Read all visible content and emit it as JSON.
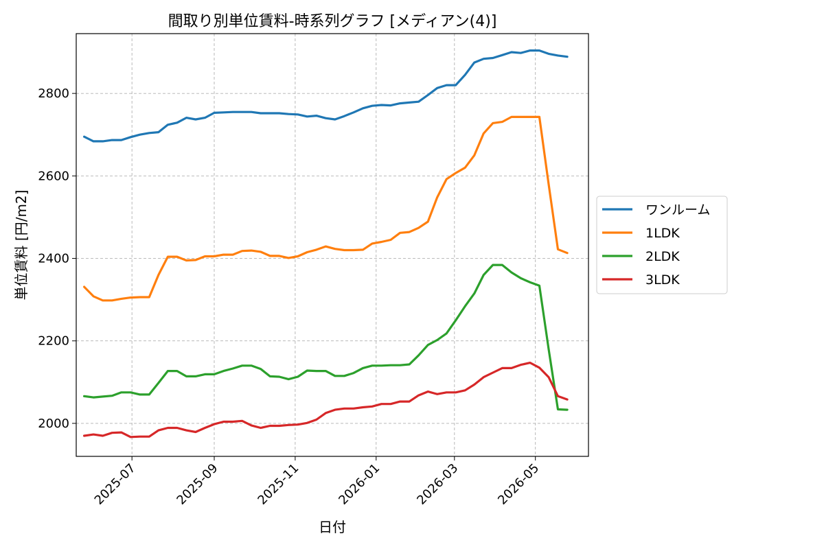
{
  "chart_data": {
    "type": "line",
    "title": "間取り別単位賃料-時系列グラフ [メディアン(4)]",
    "xlabel": "日付",
    "ylabel": "単位賃料 [円/m2]",
    "ylim": [
      1920,
      2945
    ],
    "xlim": [
      "2025-05-20",
      "2026-06-10"
    ],
    "yticks": [
      2000,
      2200,
      2400,
      2600,
      2800
    ],
    "xticks": [
      "2025-07-01",
      "2025-09-01",
      "2025-11-01",
      "2026-01-01",
      "2026-03-01",
      "2026-05-01"
    ],
    "xtick_labels": [
      "2025-07",
      "2025-09",
      "2025-11",
      "2026-01",
      "2026-03",
      "2026-05"
    ],
    "grid": true,
    "legend_position": "right-outside",
    "x": [
      "2025-05-26",
      "2025-06-02",
      "2025-06-09",
      "2025-06-16",
      "2025-06-23",
      "2025-06-30",
      "2025-07-07",
      "2025-07-14",
      "2025-07-21",
      "2025-07-28",
      "2025-08-04",
      "2025-08-11",
      "2025-08-18",
      "2025-08-25",
      "2025-09-01",
      "2025-09-08",
      "2025-09-15",
      "2025-09-22",
      "2025-09-29",
      "2025-10-06",
      "2025-10-13",
      "2025-10-20",
      "2025-10-27",
      "2025-11-03",
      "2025-11-10",
      "2025-11-17",
      "2025-11-24",
      "2025-12-01",
      "2025-12-08",
      "2025-12-15",
      "2025-12-22",
      "2025-12-29",
      "2026-01-05",
      "2026-01-12",
      "2026-01-19",
      "2026-01-26",
      "2026-02-02",
      "2026-02-09",
      "2026-02-16",
      "2026-02-23",
      "2026-03-02",
      "2026-03-09",
      "2026-03-16",
      "2026-03-23",
      "2026-03-30",
      "2026-04-06",
      "2026-04-13",
      "2026-04-20",
      "2026-04-27",
      "2026-05-04",
      "2026-05-11",
      "2026-05-18",
      "2026-05-25"
    ],
    "series": [
      {
        "name": "ワンルーム",
        "color": "#1f77b4",
        "values": [
          2695,
          2684,
          2684,
          2687,
          2687,
          2694,
          2700,
          2704,
          2706,
          2724,
          2729,
          2741,
          2737,
          2741,
          2753,
          2754,
          2755,
          2755,
          2755,
          2752,
          2752,
          2752,
          2750,
          2749,
          2744,
          2746,
          2740,
          2737,
          2745,
          2754,
          2764,
          2770,
          2772,
          2771,
          2776,
          2778,
          2780,
          2796,
          2813,
          2820,
          2820,
          2845,
          2875,
          2884,
          2886,
          2893,
          2900,
          2898,
          2904,
          2904,
          2896,
          2892,
          2889
        ]
      },
      {
        "name": "1LDK",
        "color": "#ff7f0e",
        "values": [
          2331,
          2308,
          2298,
          2298,
          2302,
          2305,
          2306,
          2306,
          2360,
          2404,
          2404,
          2395,
          2396,
          2405,
          2405,
          2409,
          2409,
          2418,
          2419,
          2416,
          2406,
          2406,
          2401,
          2405,
          2415,
          2421,
          2429,
          2423,
          2420,
          2420,
          2421,
          2436,
          2440,
          2445,
          2462,
          2464,
          2474,
          2489,
          2548,
          2592,
          2607,
          2620,
          2650,
          2703,
          2728,
          2731,
          2743,
          2743,
          2743,
          2743,
          2580,
          2422,
          2413
        ]
      },
      {
        "name": "2LDK",
        "color": "#2ca02c",
        "values": [
          2066,
          2063,
          2065,
          2067,
          2075,
          2075,
          2070,
          2070,
          2098,
          2127,
          2127,
          2114,
          2114,
          2119,
          2119,
          2127,
          2133,
          2140,
          2140,
          2132,
          2114,
          2113,
          2107,
          2113,
          2128,
          2127,
          2127,
          2115,
          2115,
          2122,
          2134,
          2140,
          2140,
          2141,
          2141,
          2143,
          2165,
          2190,
          2202,
          2218,
          2250,
          2284,
          2315,
          2360,
          2384,
          2384,
          2366,
          2352,
          2342,
          2334,
          2180,
          2034,
          2033
        ]
      },
      {
        "name": "3LDK",
        "color": "#d62728",
        "values": [
          1970,
          1973,
          1970,
          1977,
          1978,
          1967,
          1968,
          1968,
          1983,
          1989,
          1989,
          1983,
          1979,
          1989,
          1998,
          2004,
          2004,
          2006,
          1995,
          1989,
          1994,
          1994,
          1996,
          1997,
          2001,
          2009,
          2025,
          2033,
          2036,
          2036,
          2039,
          2041,
          2047,
          2047,
          2053,
          2053,
          2068,
          2077,
          2071,
          2075,
          2075,
          2080,
          2094,
          2112,
          2123,
          2134,
          2134,
          2142,
          2147,
          2135,
          2112,
          2066,
          2058
        ]
      }
    ]
  }
}
